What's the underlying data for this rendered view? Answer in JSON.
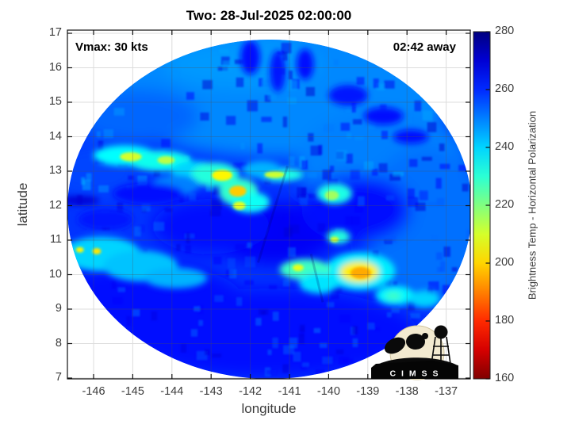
{
  "chart_data": {
    "type": "heatmap",
    "title": "Two: 28-Jul-2025 02:00:00",
    "annotations": {
      "top_left": "Vmax: 30 kts",
      "top_right": "02:42 away"
    },
    "xlabel": "longitude",
    "ylabel": "latitude",
    "x_ticks": [
      -146,
      -145,
      -144,
      -143,
      -142,
      -141,
      -140,
      -139,
      -138,
      -137
    ],
    "y_ticks": [
      7,
      8,
      9,
      10,
      11,
      12,
      13,
      14,
      15,
      16,
      17
    ],
    "xlim": [
      -146.67,
      -136.39
    ],
    "ylim": [
      6.98,
      17.09
    ],
    "grid": true,
    "colorbar": {
      "label": "Brightness Temp - Horizontal Polarization",
      "min": 160,
      "max": 280,
      "ticks": [
        160,
        180,
        200,
        220,
        240,
        260,
        280
      ],
      "colormap": "jet reversed (280 K = dark blue, 160 K = dark red)"
    },
    "swath": {
      "description": "circular microwave sensor swath over tropical cyclone Two",
      "center_lon": -141.5,
      "center_lat": 11.9,
      "radius_lon_deg": 5.16,
      "radius_lat_deg": 4.92,
      "background_temp_k": 259
    },
    "features_format": [
      "lon",
      "lat",
      "brightness_temp_k",
      "rx_deg",
      "ry_deg"
    ],
    "features": [
      [
        -141.3,
        15.4,
        249,
        4.6,
        2.0
      ],
      [
        -138.6,
        13.2,
        250,
        2.2,
        1.6
      ],
      [
        -137.5,
        11.5,
        252,
        1.6,
        2.2
      ],
      [
        -141.5,
        8.3,
        264,
        3.8,
        1.3
      ],
      [
        -144.6,
        9.3,
        263,
        2.4,
        1.0
      ],
      [
        -141.4,
        11.2,
        266,
        1.6,
        0.9
      ],
      [
        -143.0,
        11.4,
        264,
        1.5,
        0.8
      ],
      [
        -139.3,
        11.9,
        264,
        1.4,
        1.0
      ],
      [
        -142.2,
        16.1,
        247,
        2.0,
        0.7
      ],
      [
        -144.9,
        14.6,
        253,
        1.6,
        0.8
      ],
      [
        -146.0,
        13.0,
        257,
        1.2,
        0.8
      ],
      [
        -145.2,
        13.45,
        235,
        0.8,
        0.3
      ],
      [
        -144.3,
        13.3,
        233,
        0.8,
        0.3
      ],
      [
        -143.4,
        13.0,
        240,
        0.6,
        0.3
      ],
      [
        -142.9,
        12.9,
        231,
        0.6,
        0.35
      ],
      [
        -142.3,
        12.4,
        229,
        0.5,
        0.4
      ],
      [
        -142.0,
        12.1,
        234,
        0.5,
        0.3
      ],
      [
        -141.25,
        12.9,
        232,
        0.6,
        0.2
      ],
      [
        -139.85,
        12.35,
        232,
        0.45,
        0.3
      ],
      [
        -139.2,
        10.1,
        237,
        0.9,
        0.55
      ],
      [
        -140.6,
        10.15,
        228,
        0.65,
        0.3
      ],
      [
        -140.25,
        9.75,
        238,
        0.5,
        0.3
      ],
      [
        -138.3,
        9.4,
        236,
        0.5,
        0.28
      ],
      [
        -137.55,
        9.3,
        240,
        0.4,
        0.25
      ],
      [
        -145.8,
        10.6,
        240,
        1.0,
        0.5
      ],
      [
        -144.8,
        10.25,
        242,
        0.95,
        0.45
      ],
      [
        -143.9,
        9.9,
        244,
        0.8,
        0.3
      ],
      [
        -146.35,
        12.15,
        270,
        0.5,
        0.13
      ],
      [
        -139.75,
        11.1,
        231,
        0.3,
        0.2
      ],
      [
        -143.9,
        12.6,
        250,
        0.6,
        0.3
      ],
      [
        -141.7,
        13.05,
        244,
        0.5,
        0.25
      ],
      [
        -142.0,
        16.3,
        263,
        0.25,
        0.5
      ],
      [
        -141.3,
        15.9,
        262,
        0.2,
        0.6
      ],
      [
        -140.6,
        16.1,
        264,
        0.22,
        0.45
      ],
      [
        -139.5,
        15.2,
        262,
        0.5,
        0.3
      ],
      [
        -138.6,
        14.6,
        263,
        0.5,
        0.25
      ],
      [
        -137.9,
        14.0,
        264,
        0.45,
        0.2
      ],
      [
        -144.6,
        12.35,
        263,
        0.9,
        0.3
      ],
      [
        -145.7,
        11.6,
        262,
        0.7,
        0.3
      ],
      [
        -145.05,
        13.42,
        210,
        0.28,
        0.13
      ],
      [
        -144.15,
        13.32,
        213,
        0.22,
        0.12
      ],
      [
        -142.72,
        12.88,
        204,
        0.26,
        0.16
      ],
      [
        -142.32,
        12.42,
        199,
        0.22,
        0.16
      ],
      [
        -142.28,
        12.0,
        208,
        0.16,
        0.12
      ],
      [
        -141.38,
        12.9,
        211,
        0.26,
        0.1
      ],
      [
        -139.92,
        12.3,
        216,
        0.18,
        0.14
      ],
      [
        -139.22,
        10.08,
        203,
        0.5,
        0.3
      ],
      [
        -139.18,
        10.05,
        195,
        0.26,
        0.17
      ],
      [
        -140.78,
        10.2,
        208,
        0.14,
        0.1
      ],
      [
        -146.35,
        10.72,
        204,
        0.1,
        0.08
      ],
      [
        -145.92,
        10.68,
        202,
        0.11,
        0.09
      ],
      [
        -139.85,
        11.02,
        210,
        0.11,
        0.08
      ],
      [
        -138.35,
        9.38,
        228,
        0.2,
        0.12
      ]
    ]
  },
  "logo": {
    "text": "C I M S S"
  }
}
